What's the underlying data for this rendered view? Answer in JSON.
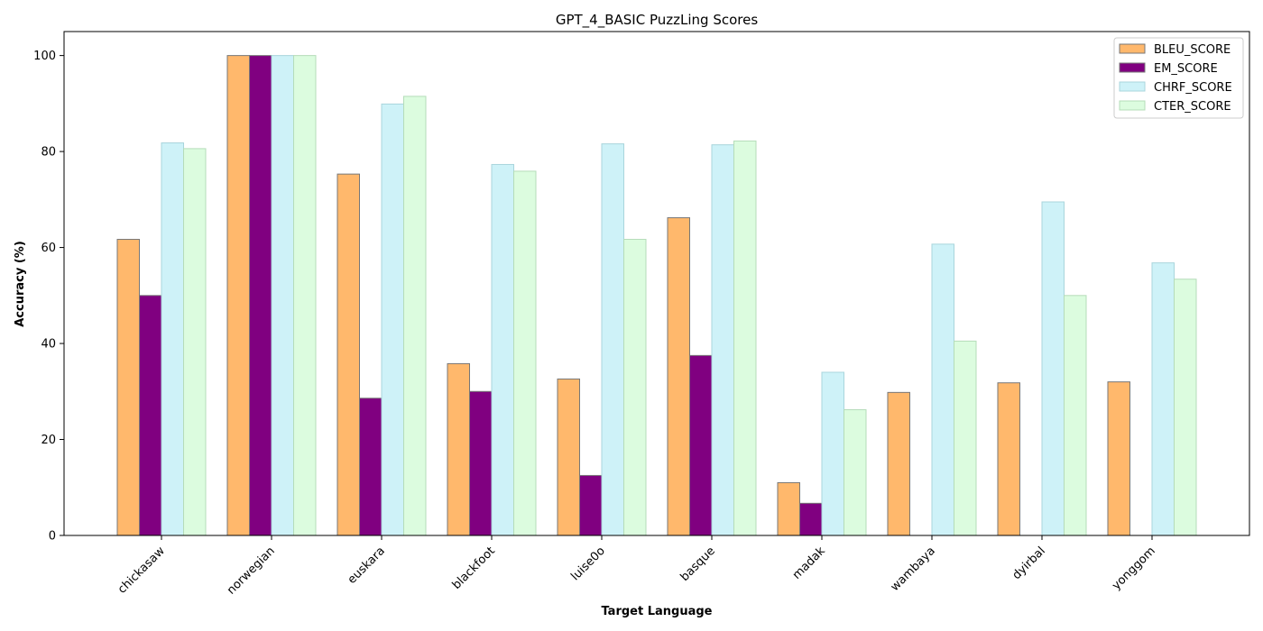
{
  "chart_data": {
    "type": "bar",
    "title": "GPT_4_BASIC PuzzLing Scores",
    "xlabel": "Target Language",
    "ylabel": "Accuracy (%)",
    "ylim": [
      0,
      105
    ],
    "yticks": [
      0,
      20,
      40,
      60,
      80,
      100
    ],
    "categories": [
      "chickasaw",
      "norwegian",
      "euskara",
      "blackfoot",
      "luise0o",
      "basque",
      "madak",
      "wambaya",
      "dyirbal",
      "yonggom"
    ],
    "series": [
      {
        "name": "BLEU_SCORE",
        "color": "#ffb86c",
        "edge": "#777777",
        "values": [
          61.7,
          100,
          75.3,
          35.8,
          32.6,
          66.2,
          11.0,
          29.8,
          31.8,
          32.0
        ]
      },
      {
        "name": "EM_SCORE",
        "color": "#800080",
        "edge": "#777777",
        "values": [
          50.0,
          100,
          28.6,
          30.0,
          12.5,
          37.5,
          6.7,
          0,
          0,
          0
        ]
      },
      {
        "name": "CHRF_SCORE",
        "color": "#cef2f8",
        "edge": "#a9d5dc",
        "values": [
          81.8,
          100,
          89.9,
          77.3,
          81.6,
          81.4,
          34.0,
          60.7,
          69.5,
          56.8
        ]
      },
      {
        "name": "CTER_SCORE",
        "color": "#dcfcdf",
        "edge": "#b5dcb9",
        "values": [
          80.6,
          100,
          91.5,
          75.9,
          61.7,
          82.2,
          26.2,
          40.5,
          50.0,
          53.4
        ]
      }
    ],
    "legend_position": "top-right",
    "grid": false
  }
}
